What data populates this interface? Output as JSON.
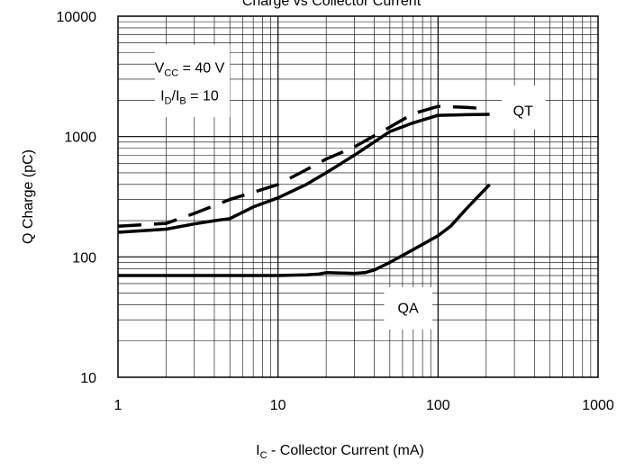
{
  "chart_data": {
    "type": "line",
    "title": "Charge vs Collector Current",
    "xlabel": {
      "main": "I",
      "sub": "C",
      "rest": " - Collector Current (mA)"
    },
    "ylabel": "Q Charge (pC)",
    "xscale": "log",
    "yscale": "log",
    "xlim": [
      1,
      1000
    ],
    "ylim": [
      10,
      10000
    ],
    "xticks": [
      "1",
      "10",
      "100",
      "1000"
    ],
    "yticks": [
      "10",
      "100",
      "1000",
      "10000"
    ],
    "grid": true,
    "annotation": {
      "line1": {
        "main": "V",
        "sub": "CC",
        "rest": " = 40 V"
      },
      "line2": {
        "a": "I",
        "a_sub": "D",
        "mid": "/I",
        "b_sub": "B",
        "rest": " = 10"
      }
    },
    "series": [
      {
        "name": "QT",
        "style": "solid",
        "color": "#000000",
        "x": [
          1,
          2,
          3,
          4,
          5,
          7,
          10,
          15,
          20,
          30,
          50,
          70,
          100,
          150,
          210
        ],
        "y": [
          160,
          170,
          188,
          200,
          208,
          260,
          310,
          400,
          500,
          700,
          1100,
          1300,
          1500,
          1520,
          1530
        ]
      },
      {
        "name": "",
        "style": "dashed",
        "color": "#000000",
        "x": [
          1,
          2,
          3,
          5,
          10,
          15,
          20,
          30,
          50,
          70,
          100,
          150,
          200
        ],
        "y": [
          180,
          190,
          230,
          300,
          400,
          530,
          650,
          820,
          1200,
          1550,
          1780,
          1750,
          1700
        ]
      },
      {
        "name": "QA",
        "style": "solid",
        "color": "#000000",
        "x": [
          1,
          5,
          10,
          15,
          18,
          20,
          25,
          30,
          35,
          40,
          50,
          70,
          100,
          120,
          150,
          210
        ],
        "y": [
          70,
          70,
          70,
          71,
          72,
          74,
          73.5,
          73,
          74,
          78,
          90,
          115,
          150,
          180,
          250,
          400
        ]
      }
    ],
    "series_labels": [
      {
        "text": "QT",
        "for": "QT"
      },
      {
        "text": "QA",
        "for": "QA"
      }
    ]
  }
}
